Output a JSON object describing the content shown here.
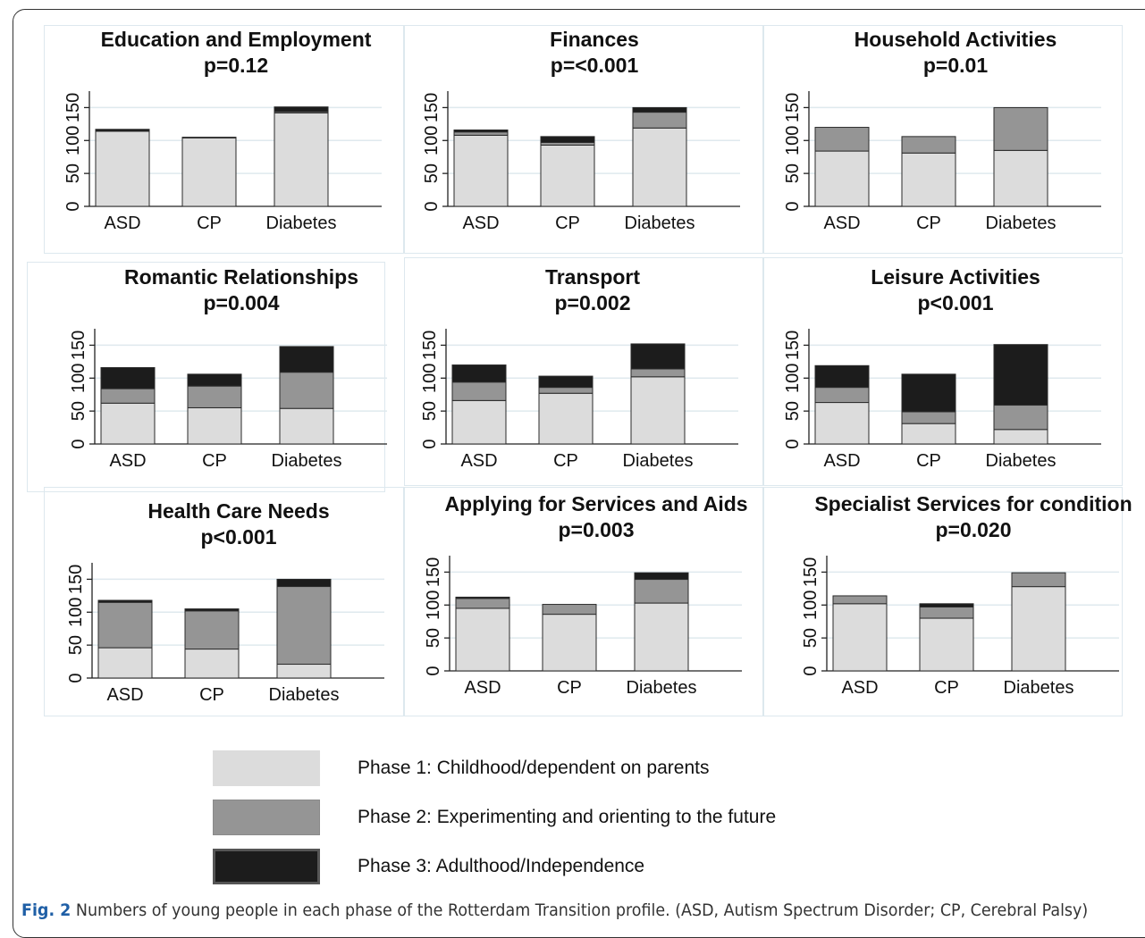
{
  "colors": {
    "phase1": "#dcdcdc",
    "phase2": "#959595",
    "phase3": "#1c1c1c",
    "bar_outline": "#2a2a2a",
    "gridline": "#dfe9ee",
    "caption_label": "#1f5fa6"
  },
  "chart_data": [
    {
      "type": "bar",
      "stacked": true,
      "title": "Education and Employment",
      "subtitle": "p=0.12",
      "categories": [
        "ASD",
        "CP",
        "Diabetes"
      ],
      "yticks": [
        0,
        50,
        100,
        150
      ],
      "ylim": [
        0,
        175
      ],
      "series": [
        {
          "name": "Phase 1: Childhood/dependent on parents",
          "values": [
            114,
            104,
            142
          ]
        },
        {
          "name": "Phase 2: Experimenting and orienting to the future",
          "values": [
            0,
            0,
            2
          ]
        },
        {
          "name": "Phase 3: Adulthood/Independence",
          "values": [
            3,
            1,
            7
          ]
        }
      ]
    },
    {
      "type": "bar",
      "stacked": true,
      "title": "Finances",
      "subtitle": "p=<0.001",
      "categories": [
        "ASD",
        "CP",
        "Diabetes"
      ],
      "yticks": [
        0,
        50,
        100,
        150
      ],
      "ylim": [
        0,
        175
      ],
      "series": [
        {
          "name": "Phase 1: Childhood/dependent on parents",
          "values": [
            108,
            93,
            119
          ]
        },
        {
          "name": "Phase 2: Experimenting and orienting to the future",
          "values": [
            5,
            4,
            24
          ]
        },
        {
          "name": "Phase 3: Adulthood/Independence",
          "values": [
            3,
            9,
            7
          ]
        }
      ]
    },
    {
      "type": "bar",
      "stacked": true,
      "title": "Household Activities",
      "subtitle": "p=0.01",
      "categories": [
        "ASD",
        "CP",
        "Diabetes"
      ],
      "yticks": [
        0,
        50,
        100,
        150
      ],
      "ylim": [
        0,
        175
      ],
      "series": [
        {
          "name": "Phase 1: Childhood/dependent on parents",
          "values": [
            84,
            81,
            85
          ]
        },
        {
          "name": "Phase 2: Experimenting and orienting to the future",
          "values": [
            36,
            25,
            65
          ]
        },
        {
          "name": "Phase 3: Adulthood/Independence",
          "values": [
            0,
            0,
            0
          ]
        }
      ]
    },
    {
      "type": "bar",
      "stacked": true,
      "title": "Romantic Relationships",
      "subtitle": "p=0.004",
      "categories": [
        "ASD",
        "CP",
        "Diabetes"
      ],
      "yticks": [
        0,
        50,
        100,
        150
      ],
      "ylim": [
        0,
        175
      ],
      "series": [
        {
          "name": "Phase 1: Childhood/dependent on parents",
          "values": [
            62,
            55,
            54
          ]
        },
        {
          "name": "Phase 2: Experimenting and orienting to the future",
          "values": [
            22,
            33,
            55
          ]
        },
        {
          "name": "Phase 3: Adulthood/Independence",
          "values": [
            32,
            18,
            39
          ]
        }
      ]
    },
    {
      "type": "bar",
      "stacked": true,
      "title": "Transport",
      "subtitle": "p=0.002",
      "categories": [
        "ASD",
        "CP",
        "Diabetes"
      ],
      "yticks": [
        0,
        50,
        100,
        150
      ],
      "ylim": [
        0,
        175
      ],
      "series": [
        {
          "name": "Phase 1: Childhood/dependent on parents",
          "values": [
            66,
            77,
            102
          ]
        },
        {
          "name": "Phase 2: Experimenting and orienting to the future",
          "values": [
            28,
            9,
            12
          ]
        },
        {
          "name": "Phase 3: Adulthood/Independence",
          "values": [
            26,
            17,
            38
          ]
        }
      ]
    },
    {
      "type": "bar",
      "stacked": true,
      "title": "Leisure Activities",
      "subtitle": "p<0.001",
      "categories": [
        "ASD",
        "CP",
        "Diabetes"
      ],
      "yticks": [
        0,
        50,
        100,
        150
      ],
      "ylim": [
        0,
        175
      ],
      "series": [
        {
          "name": "Phase 1: Childhood/dependent on parents",
          "values": [
            63,
            31,
            22
          ]
        },
        {
          "name": "Phase 2: Experimenting and orienting to the future",
          "values": [
            23,
            18,
            37
          ]
        },
        {
          "name": "Phase 3: Adulthood/Independence",
          "values": [
            33,
            57,
            92
          ]
        }
      ]
    },
    {
      "type": "bar",
      "stacked": true,
      "title": "Health Care Needs",
      "subtitle": "p<0.001",
      "categories": [
        "ASD",
        "CP",
        "Diabetes"
      ],
      "yticks": [
        0,
        50,
        100,
        150
      ],
      "ylim": [
        0,
        175
      ],
      "series": [
        {
          "name": "Phase 1: Childhood/dependent on parents",
          "values": [
            46,
            44,
            21
          ]
        },
        {
          "name": "Phase 2: Experimenting and orienting to the future",
          "values": [
            69,
            58,
            118
          ]
        },
        {
          "name": "Phase 3: Adulthood/Independence",
          "values": [
            3,
            3,
            11
          ]
        }
      ]
    },
    {
      "type": "bar",
      "stacked": true,
      "title": "Applying for Services and Aids",
      "subtitle": "p=0.003",
      "categories": [
        "ASD",
        "CP",
        "Diabetes"
      ],
      "yticks": [
        0,
        50,
        100,
        150
      ],
      "ylim": [
        0,
        175
      ],
      "series": [
        {
          "name": "Phase 1: Childhood/dependent on parents",
          "values": [
            95,
            86,
            103
          ]
        },
        {
          "name": "Phase 2: Experimenting and orienting to the future",
          "values": [
            15,
            15,
            36
          ]
        },
        {
          "name": "Phase 3: Adulthood/Independence",
          "values": [
            2,
            0,
            10
          ]
        }
      ]
    },
    {
      "type": "bar",
      "stacked": true,
      "title": "Specialist Services for condition",
      "subtitle": "p=0.020",
      "categories": [
        "ASD",
        "CP",
        "Diabetes"
      ],
      "yticks": [
        0,
        50,
        100,
        150
      ],
      "ylim": [
        0,
        175
      ],
      "series": [
        {
          "name": "Phase 1: Childhood/dependent on parents",
          "values": [
            102,
            80,
            128
          ]
        },
        {
          "name": "Phase 2: Experimenting and orienting to the future",
          "values": [
            12,
            17,
            21
          ]
        },
        {
          "name": "Phase 3: Adulthood/Independence",
          "values": [
            0,
            5,
            0
          ]
        }
      ]
    }
  ],
  "legend": [
    {
      "label": "Phase 1: Childhood/dependent on parents"
    },
    {
      "label": "Phase 2: Experimenting and orienting to the future"
    },
    {
      "label": "Phase 3: Adulthood/Independence"
    }
  ],
  "caption": {
    "label": "Fig. 2",
    "text": " Numbers of young people in each phase of the Rotterdam Transition profile. (ASD, Autism Spectrum Disorder; CP, Cerebral Palsy)"
  }
}
